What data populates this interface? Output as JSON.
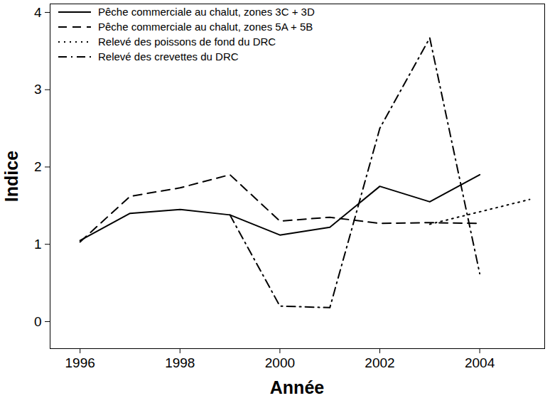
{
  "chart_data": {
    "type": "line",
    "x_label": "Année",
    "y_label": "Indice",
    "x": [
      1996,
      1997,
      1998,
      1999,
      2000,
      2001,
      2002,
      2003,
      2004,
      2005
    ],
    "series": [
      {
        "name": "Pêche commerciale au chalut, zones 3C + 3D",
        "color": "#000000",
        "line_style": "solid",
        "values": [
          1.05,
          1.4,
          1.45,
          1.38,
          1.12,
          1.22,
          1.75,
          1.55,
          1.9,
          null
        ]
      },
      {
        "name": "Pêche commerciale au chalut, zones 5A + 5B",
        "color": "#000000",
        "line_style": "dashed",
        "values": [
          1.03,
          1.62,
          1.73,
          1.9,
          1.3,
          1.35,
          1.27,
          1.28,
          1.27,
          null
        ]
      },
      {
        "name": "Relevé des poissons de fond du DRC",
        "color": "#000000",
        "line_style": "dotted",
        "values": [
          null,
          null,
          null,
          null,
          null,
          null,
          null,
          1.26,
          1.42,
          1.58
        ]
      },
      {
        "name": "Relevé des crevettes du DRC",
        "color": "#000000",
        "line_style": "dashdot",
        "values": [
          null,
          null,
          null,
          1.38,
          0.2,
          0.18,
          2.5,
          3.67,
          0.62,
          null
        ]
      }
    ],
    "xlim": [
      1995.4,
      2005.3
    ],
    "xticks": [
      1996,
      1998,
      2000,
      2002,
      2004
    ],
    "ylim": [
      -0.35,
      4.11
    ],
    "yticks": [
      0,
      1,
      2,
      3,
      4
    ],
    "grid": false,
    "legend": "top-left"
  }
}
